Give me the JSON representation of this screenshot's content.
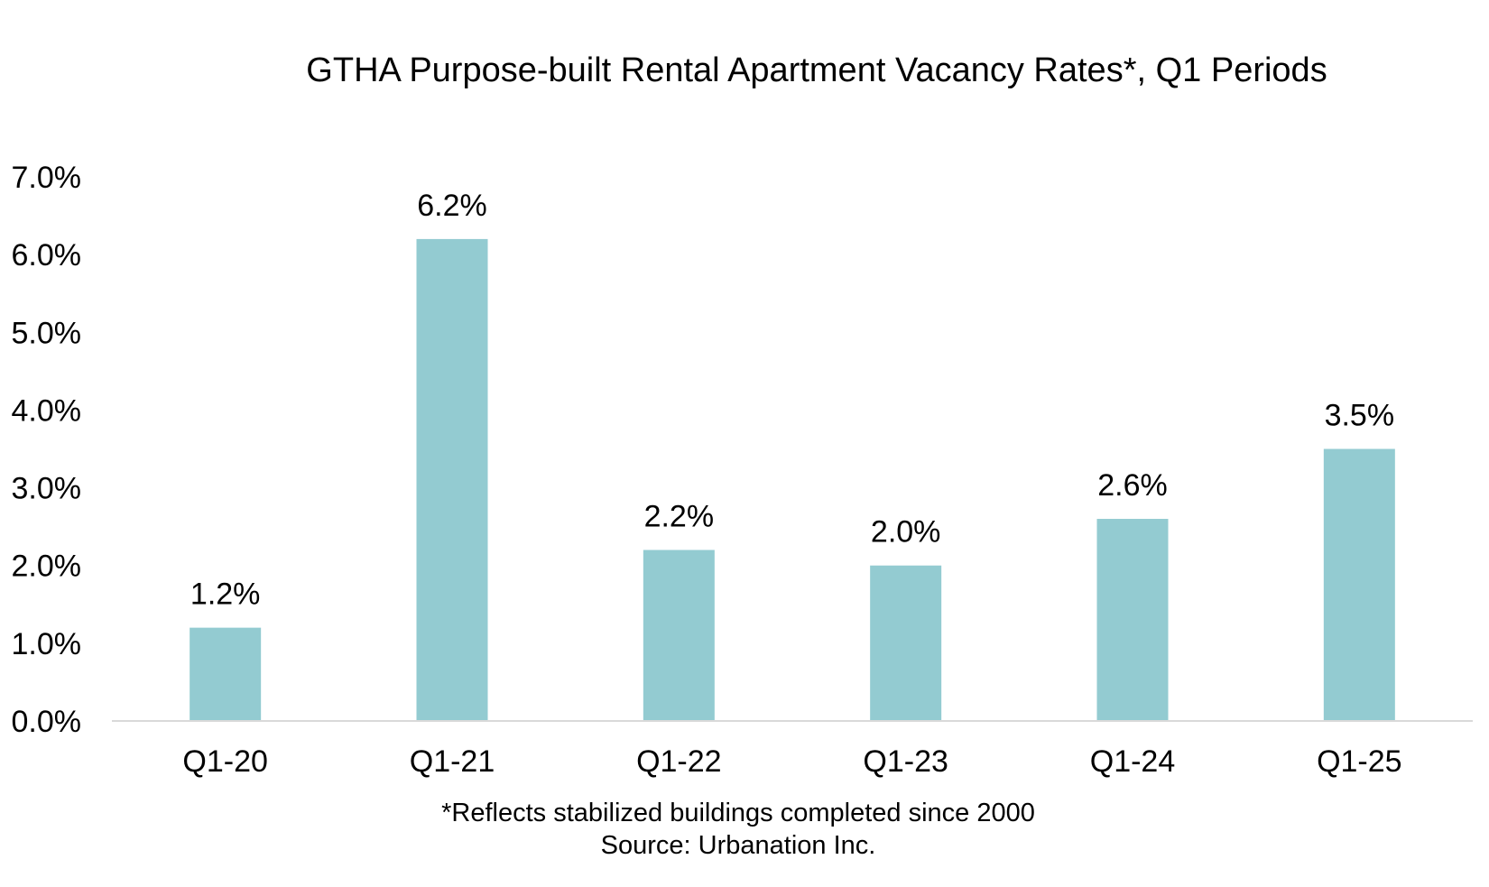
{
  "chart_data": {
    "type": "bar",
    "title": "GTHA Purpose-built Rental Apartment Vacancy Rates*, Q1 Periods",
    "categories": [
      "Q1-20",
      "Q1-21",
      "Q1-22",
      "Q1-23",
      "Q1-24",
      "Q1-25"
    ],
    "values": [
      1.2,
      6.2,
      2.2,
      2.0,
      2.6,
      3.5
    ],
    "data_labels": [
      "1.2%",
      "6.2%",
      "2.2%",
      "2.0%",
      "2.6%",
      "3.5%"
    ],
    "y_ticks": [
      "0.0%",
      "1.0%",
      "2.0%",
      "3.0%",
      "4.0%",
      "5.0%",
      "6.0%",
      "7.0%"
    ],
    "ylim": [
      0,
      7
    ],
    "xlabel": "",
    "ylabel": "",
    "grid": false,
    "legend": "none",
    "bar_color": "#93CBD1",
    "axis_color": "#D9D9D9"
  },
  "notes": {
    "footnote": "*Reflects stabilized buildings completed since 2000",
    "source": "Source: Urbanation Inc."
  }
}
